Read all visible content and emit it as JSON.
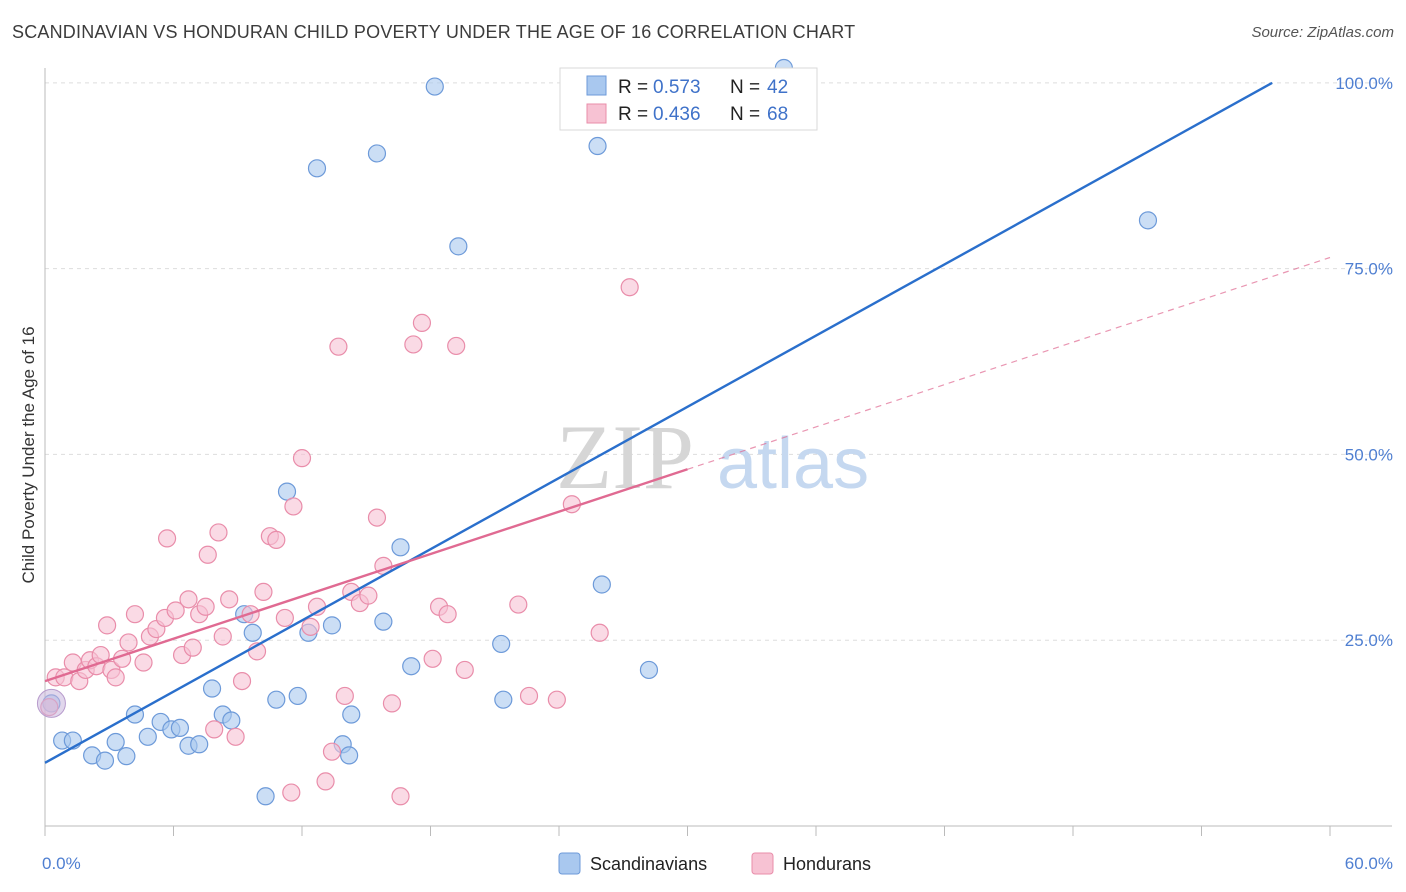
{
  "header": {
    "title": "SCANDINAVIAN VS HONDURAN CHILD POVERTY UNDER THE AGE OF 16 CORRELATION CHART",
    "source": "Source: ZipAtlas.com"
  },
  "watermark": {
    "zip": "ZIP",
    "atlas": "atlas"
  },
  "legend": {
    "r_label": "R =",
    "n_label": "N =",
    "rows": [
      {
        "r": "0.573",
        "n": "42"
      },
      {
        "r": "0.436",
        "n": "68"
      }
    ]
  },
  "chart_data": {
    "type": "scatter",
    "ylabel": "Child Poverty Under the Age of 16",
    "xlim": [
      0,
      60
    ],
    "ylim": [
      0,
      102
    ],
    "x_tick_labels": [
      {
        "value": 0,
        "label": "0.0%"
      },
      {
        "value": 60,
        "label": "60.0%"
      }
    ],
    "y_tick_labels": [
      {
        "value": 25,
        "label": "25.0%"
      },
      {
        "value": 50,
        "label": "50.0%"
      },
      {
        "value": 75,
        "label": "75.0%"
      },
      {
        "value": 100,
        "label": "100.0%"
      }
    ],
    "grid": "horizontal dashed",
    "legend_position": "top-center",
    "series": [
      {
        "name": "Scandinavians",
        "color": "#a9c8ef",
        "stroke": "#6d9ad9",
        "line_color": "#2a6fcc",
        "trend": {
          "x": [
            0,
            57.3
          ],
          "y": [
            8.5,
            100
          ],
          "dashed_from": null
        },
        "points": [
          [
            0.3,
            16.5
          ],
          [
            0.8,
            11.5
          ],
          [
            1.3,
            11.5
          ],
          [
            2.2,
            9.5
          ],
          [
            2.8,
            8.8
          ],
          [
            3.3,
            11.3
          ],
          [
            3.8,
            9.4
          ],
          [
            4.2,
            15
          ],
          [
            4.8,
            12
          ],
          [
            5.4,
            14
          ],
          [
            5.9,
            13
          ],
          [
            6.3,
            13.2
          ],
          [
            6.7,
            10.8
          ],
          [
            7.2,
            11
          ],
          [
            7.8,
            18.5
          ],
          [
            8.3,
            15
          ],
          [
            8.7,
            14.2
          ],
          [
            9.3,
            28.5
          ],
          [
            9.7,
            26
          ],
          [
            10.3,
            4
          ],
          [
            10.8,
            17
          ],
          [
            11.3,
            45
          ],
          [
            11.8,
            17.5
          ],
          [
            12.3,
            26
          ],
          [
            12.7,
            88.5
          ],
          [
            13.4,
            27
          ],
          [
            13.9,
            11
          ],
          [
            14.3,
            15
          ],
          [
            14.2,
            9.5
          ],
          [
            15.5,
            90.5
          ],
          [
            15.8,
            27.5
          ],
          [
            16.6,
            37.5
          ],
          [
            17.1,
            21.5
          ],
          [
            18.2,
            99.5
          ],
          [
            19.3,
            78
          ],
          [
            21.3,
            24.5
          ],
          [
            21.4,
            17
          ],
          [
            25.8,
            91.5
          ],
          [
            26,
            32.5
          ],
          [
            28.2,
            21
          ],
          [
            51.5,
            81.5
          ],
          [
            34.5,
            102
          ]
        ]
      },
      {
        "name": "Hondurans",
        "color": "#f7c2d3",
        "stroke": "#e98daa",
        "line_color": "#e06a92",
        "trend": {
          "x": [
            0,
            30
          ],
          "y": [
            19.5,
            48
          ],
          "dashed_to": [
            60,
            76.5
          ]
        },
        "points": [
          [
            0.2,
            16
          ],
          [
            0.5,
            20
          ],
          [
            0.9,
            20
          ],
          [
            1.3,
            22
          ],
          [
            1.6,
            19.5
          ],
          [
            1.9,
            21
          ],
          [
            2.1,
            22.3
          ],
          [
            2.4,
            21.5
          ],
          [
            2.6,
            23
          ],
          [
            2.9,
            27
          ],
          [
            3.1,
            21
          ],
          [
            3.3,
            20
          ],
          [
            3.6,
            22.5
          ],
          [
            3.9,
            24.7
          ],
          [
            4.2,
            28.5
          ],
          [
            4.6,
            22
          ],
          [
            4.9,
            25.5
          ],
          [
            5.2,
            26.5
          ],
          [
            5.6,
            28
          ],
          [
            5.7,
            38.7
          ],
          [
            6.1,
            29
          ],
          [
            6.4,
            23
          ],
          [
            6.7,
            30.5
          ],
          [
            6.9,
            24
          ],
          [
            7.2,
            28.5
          ],
          [
            7.5,
            29.5
          ],
          [
            7.6,
            36.5
          ],
          [
            7.9,
            13
          ],
          [
            8.1,
            39.5
          ],
          [
            8.3,
            25.5
          ],
          [
            8.6,
            30.5
          ],
          [
            8.9,
            12
          ],
          [
            9.2,
            19.5
          ],
          [
            9.6,
            28.5
          ],
          [
            9.9,
            23.5
          ],
          [
            10.2,
            31.5
          ],
          [
            10.5,
            39
          ],
          [
            10.8,
            38.5
          ],
          [
            11.2,
            28
          ],
          [
            11.6,
            43
          ],
          [
            12,
            49.5
          ],
          [
            12.4,
            26.8
          ],
          [
            12.7,
            29.5
          ],
          [
            13.1,
            6
          ],
          [
            13.4,
            10
          ],
          [
            13.7,
            64.5
          ],
          [
            14,
            17.5
          ],
          [
            14.3,
            31.5
          ],
          [
            14.7,
            30
          ],
          [
            15.1,
            31
          ],
          [
            15.5,
            41.5
          ],
          [
            15.8,
            35
          ],
          [
            16.2,
            16.5
          ],
          [
            16.6,
            4
          ],
          [
            17.2,
            64.8
          ],
          [
            17.6,
            67.7
          ],
          [
            18.1,
            22.5
          ],
          [
            18.4,
            29.5
          ],
          [
            18.8,
            28.5
          ],
          [
            19.2,
            64.6
          ],
          [
            19.6,
            21
          ],
          [
            22.1,
            29.8
          ],
          [
            22.6,
            17.5
          ],
          [
            24.6,
            43.3
          ],
          [
            25.9,
            26
          ],
          [
            27.3,
            72.5
          ],
          [
            23.9,
            17
          ],
          [
            11.5,
            4.5
          ]
        ]
      }
    ]
  }
}
